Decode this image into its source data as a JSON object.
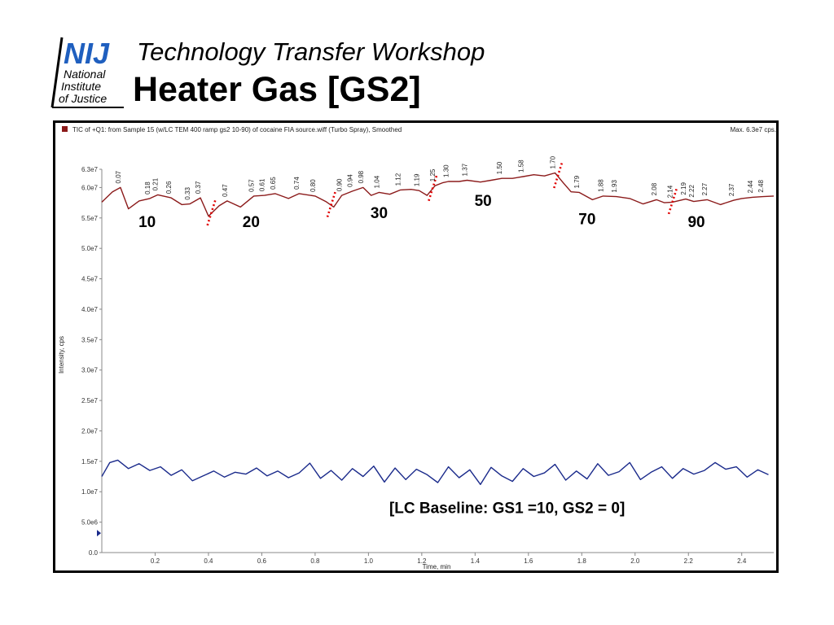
{
  "logo": {
    "mark": "NIJ",
    "line1": "National",
    "line2": "Institute",
    "line3": "of Justice"
  },
  "header": {
    "subtitle": "Technology Transfer Workshop",
    "title": "Heater Gas [GS2]"
  },
  "colors": {
    "tic": "#8b1a1a",
    "baseline": "#1a2a8b",
    "marker": "#e00000",
    "legend_swatch": "#8b1a1a",
    "logo_blue": "#1f5fbf"
  },
  "chart_data": {
    "type": "line",
    "plot_caption": "TIC of +Q1: from Sample 15 (w/LC TEM 400 ramp gs2 10-90) of cocaine FIA source.wiff (Turbo Spray), Smoothed",
    "max_label": "Max. 6.3e7 cps.",
    "xlabel": "Time, min",
    "ylabel": "Intensity, cps",
    "xlim": [
      0.0,
      2.52
    ],
    "ylim": [
      0,
      63000000
    ],
    "x_ticks": [
      "0.2",
      "0.4",
      "0.6",
      "0.8",
      "1.0",
      "1.2",
      "1.4",
      "1.6",
      "1.8",
      "2.0",
      "2.2",
      "2.4"
    ],
    "x_tick_values": [
      0.2,
      0.4,
      0.6,
      0.8,
      1.0,
      1.2,
      1.4,
      1.6,
      1.8,
      2.0,
      2.2,
      2.4
    ],
    "y_ticks": [
      "0.0",
      "5.0e6",
      "1.0e7",
      "1.5e7",
      "2.0e7",
      "2.5e7",
      "3.0e7",
      "3.5e7",
      "4.0e7",
      "4.5e7",
      "5.0e7",
      "5.5e7",
      "6.0e7",
      "6.3e7"
    ],
    "y_tick_values": [
      0,
      5000000,
      10000000,
      15000000,
      20000000,
      25000000,
      30000000,
      35000000,
      40000000,
      45000000,
      50000000,
      55000000,
      60000000,
      63000000
    ],
    "series": [
      {
        "x": [
          0.0,
          0.04,
          0.07,
          0.1,
          0.14,
          0.18,
          0.21,
          0.26,
          0.3,
          0.33,
          0.37,
          0.4,
          0.44,
          0.47,
          0.52,
          0.57,
          0.61,
          0.65,
          0.7,
          0.74,
          0.8,
          0.84,
          0.87,
          0.9,
          0.94,
          0.98,
          1.01,
          1.04,
          1.08,
          1.12,
          1.16,
          1.19,
          1.22,
          1.25,
          1.28,
          1.3,
          1.34,
          1.37,
          1.42,
          1.46,
          1.5,
          1.54,
          1.58,
          1.62,
          1.66,
          1.7,
          1.73,
          1.76,
          1.79,
          1.84,
          1.88,
          1.93,
          1.98,
          2.03,
          2.08,
          2.11,
          2.14,
          2.19,
          2.22,
          2.27,
          2.32,
          2.37,
          2.4,
          2.44,
          2.48,
          2.52
        ],
        "y": [
          57600000,
          59300000,
          60000000,
          56500000,
          57800000,
          58200000,
          58800000,
          58300000,
          57200000,
          57300000,
          58300000,
          55300000,
          57000000,
          57800000,
          56800000,
          58600000,
          58700000,
          59000000,
          58200000,
          59000000,
          58600000,
          57700000,
          56800000,
          58700000,
          59400000,
          60000000,
          58700000,
          59200000,
          58900000,
          59600000,
          59700000,
          59500000,
          58700000,
          60300000,
          60800000,
          61000000,
          61000000,
          61200000,
          60900000,
          61200000,
          61500000,
          61500000,
          61800000,
          62100000,
          61900000,
          62400000,
          60800000,
          59300000,
          59200000,
          58000000,
          58600000,
          58500000,
          58200000,
          57300000,
          58000000,
          57500000,
          57600000,
          58100000,
          57700000,
          58000000,
          57200000,
          57900000,
          58200000,
          58400000,
          58500000,
          58600000
        ]
      },
      {
        "x": [
          0.0,
          0.03,
          0.06,
          0.1,
          0.14,
          0.18,
          0.22,
          0.26,
          0.3,
          0.34,
          0.38,
          0.42,
          0.46,
          0.5,
          0.54,
          0.58,
          0.62,
          0.66,
          0.7,
          0.74,
          0.78,
          0.82,
          0.86,
          0.9,
          0.94,
          0.98,
          1.02,
          1.06,
          1.1,
          1.14,
          1.18,
          1.22,
          1.26,
          1.3,
          1.34,
          1.38,
          1.42,
          1.46,
          1.5,
          1.54,
          1.58,
          1.62,
          1.66,
          1.7,
          1.74,
          1.78,
          1.82,
          1.86,
          1.9,
          1.94,
          1.98,
          2.02,
          2.06,
          2.1,
          2.14,
          2.18,
          2.22,
          2.26,
          2.3,
          2.34,
          2.38,
          2.42,
          2.46,
          2.5
        ],
        "y": [
          12500000,
          14800000,
          15200000,
          13800000,
          14600000,
          13500000,
          14100000,
          12700000,
          13600000,
          11800000,
          12600000,
          13400000,
          12400000,
          13200000,
          12900000,
          13900000,
          12600000,
          13400000,
          12300000,
          13100000,
          14700000,
          12200000,
          13500000,
          11900000,
          13800000,
          12500000,
          14200000,
          11600000,
          13900000,
          12000000,
          13700000,
          12800000,
          11500000,
          14100000,
          12300000,
          13600000,
          11200000,
          14000000,
          12600000,
          11700000,
          13800000,
          12500000,
          13100000,
          14500000,
          11900000,
          13400000,
          12100000,
          14600000,
          12700000,
          13300000,
          14800000,
          12000000,
          13200000,
          14100000,
          12200000,
          13800000,
          12900000,
          13500000,
          14800000,
          13700000,
          14100000,
          12400000,
          13600000,
          12800000
        ]
      }
    ],
    "peak_labels": [
      "0.07",
      "0.18",
      "0.21",
      "0.26",
      "0.33",
      "0.37",
      "0.47",
      "0.57",
      "0.61",
      "0.65",
      "0.74",
      "0.80",
      "0.90",
      "0.94",
      "0.98",
      "1.04",
      "1.12",
      "1.19",
      "1.25",
      "1.30",
      "1.37",
      "1.50",
      "1.58",
      "1.70",
      "1.79",
      "1.88",
      "1.93",
      "2.08",
      "2.14",
      "2.19",
      "2.22",
      "2.27",
      "2.37",
      "2.44",
      "2.48"
    ],
    "peak_x": [
      0.07,
      0.18,
      0.21,
      0.26,
      0.33,
      0.37,
      0.47,
      0.57,
      0.61,
      0.65,
      0.74,
      0.8,
      0.9,
      0.94,
      0.98,
      1.04,
      1.12,
      1.19,
      1.25,
      1.3,
      1.37,
      1.5,
      1.58,
      1.7,
      1.79,
      1.88,
      1.93,
      2.08,
      2.14,
      2.19,
      2.22,
      2.27,
      2.37,
      2.44,
      2.48
    ],
    "gs2_labels": [
      {
        "text": "10",
        "x": 0.17,
        "y": 53500000
      },
      {
        "text": "20",
        "x": 0.56,
        "y": 53500000
      },
      {
        "text": "30",
        "x": 1.04,
        "y": 55000000
      },
      {
        "text": "50",
        "x": 1.43,
        "y": 57000000
      },
      {
        "text": "70",
        "x": 1.82,
        "y": 54000000
      },
      {
        "text": "90",
        "x": 2.23,
        "y": 53500000
      }
    ],
    "transition_x": [
      0.41,
      0.86,
      1.24,
      1.71,
      2.14
    ],
    "baseline_annotation": {
      "text": "[LC Baseline: GS1 =10, GS2 = 0]",
      "x": 1.52,
      "y": 6500000
    }
  }
}
